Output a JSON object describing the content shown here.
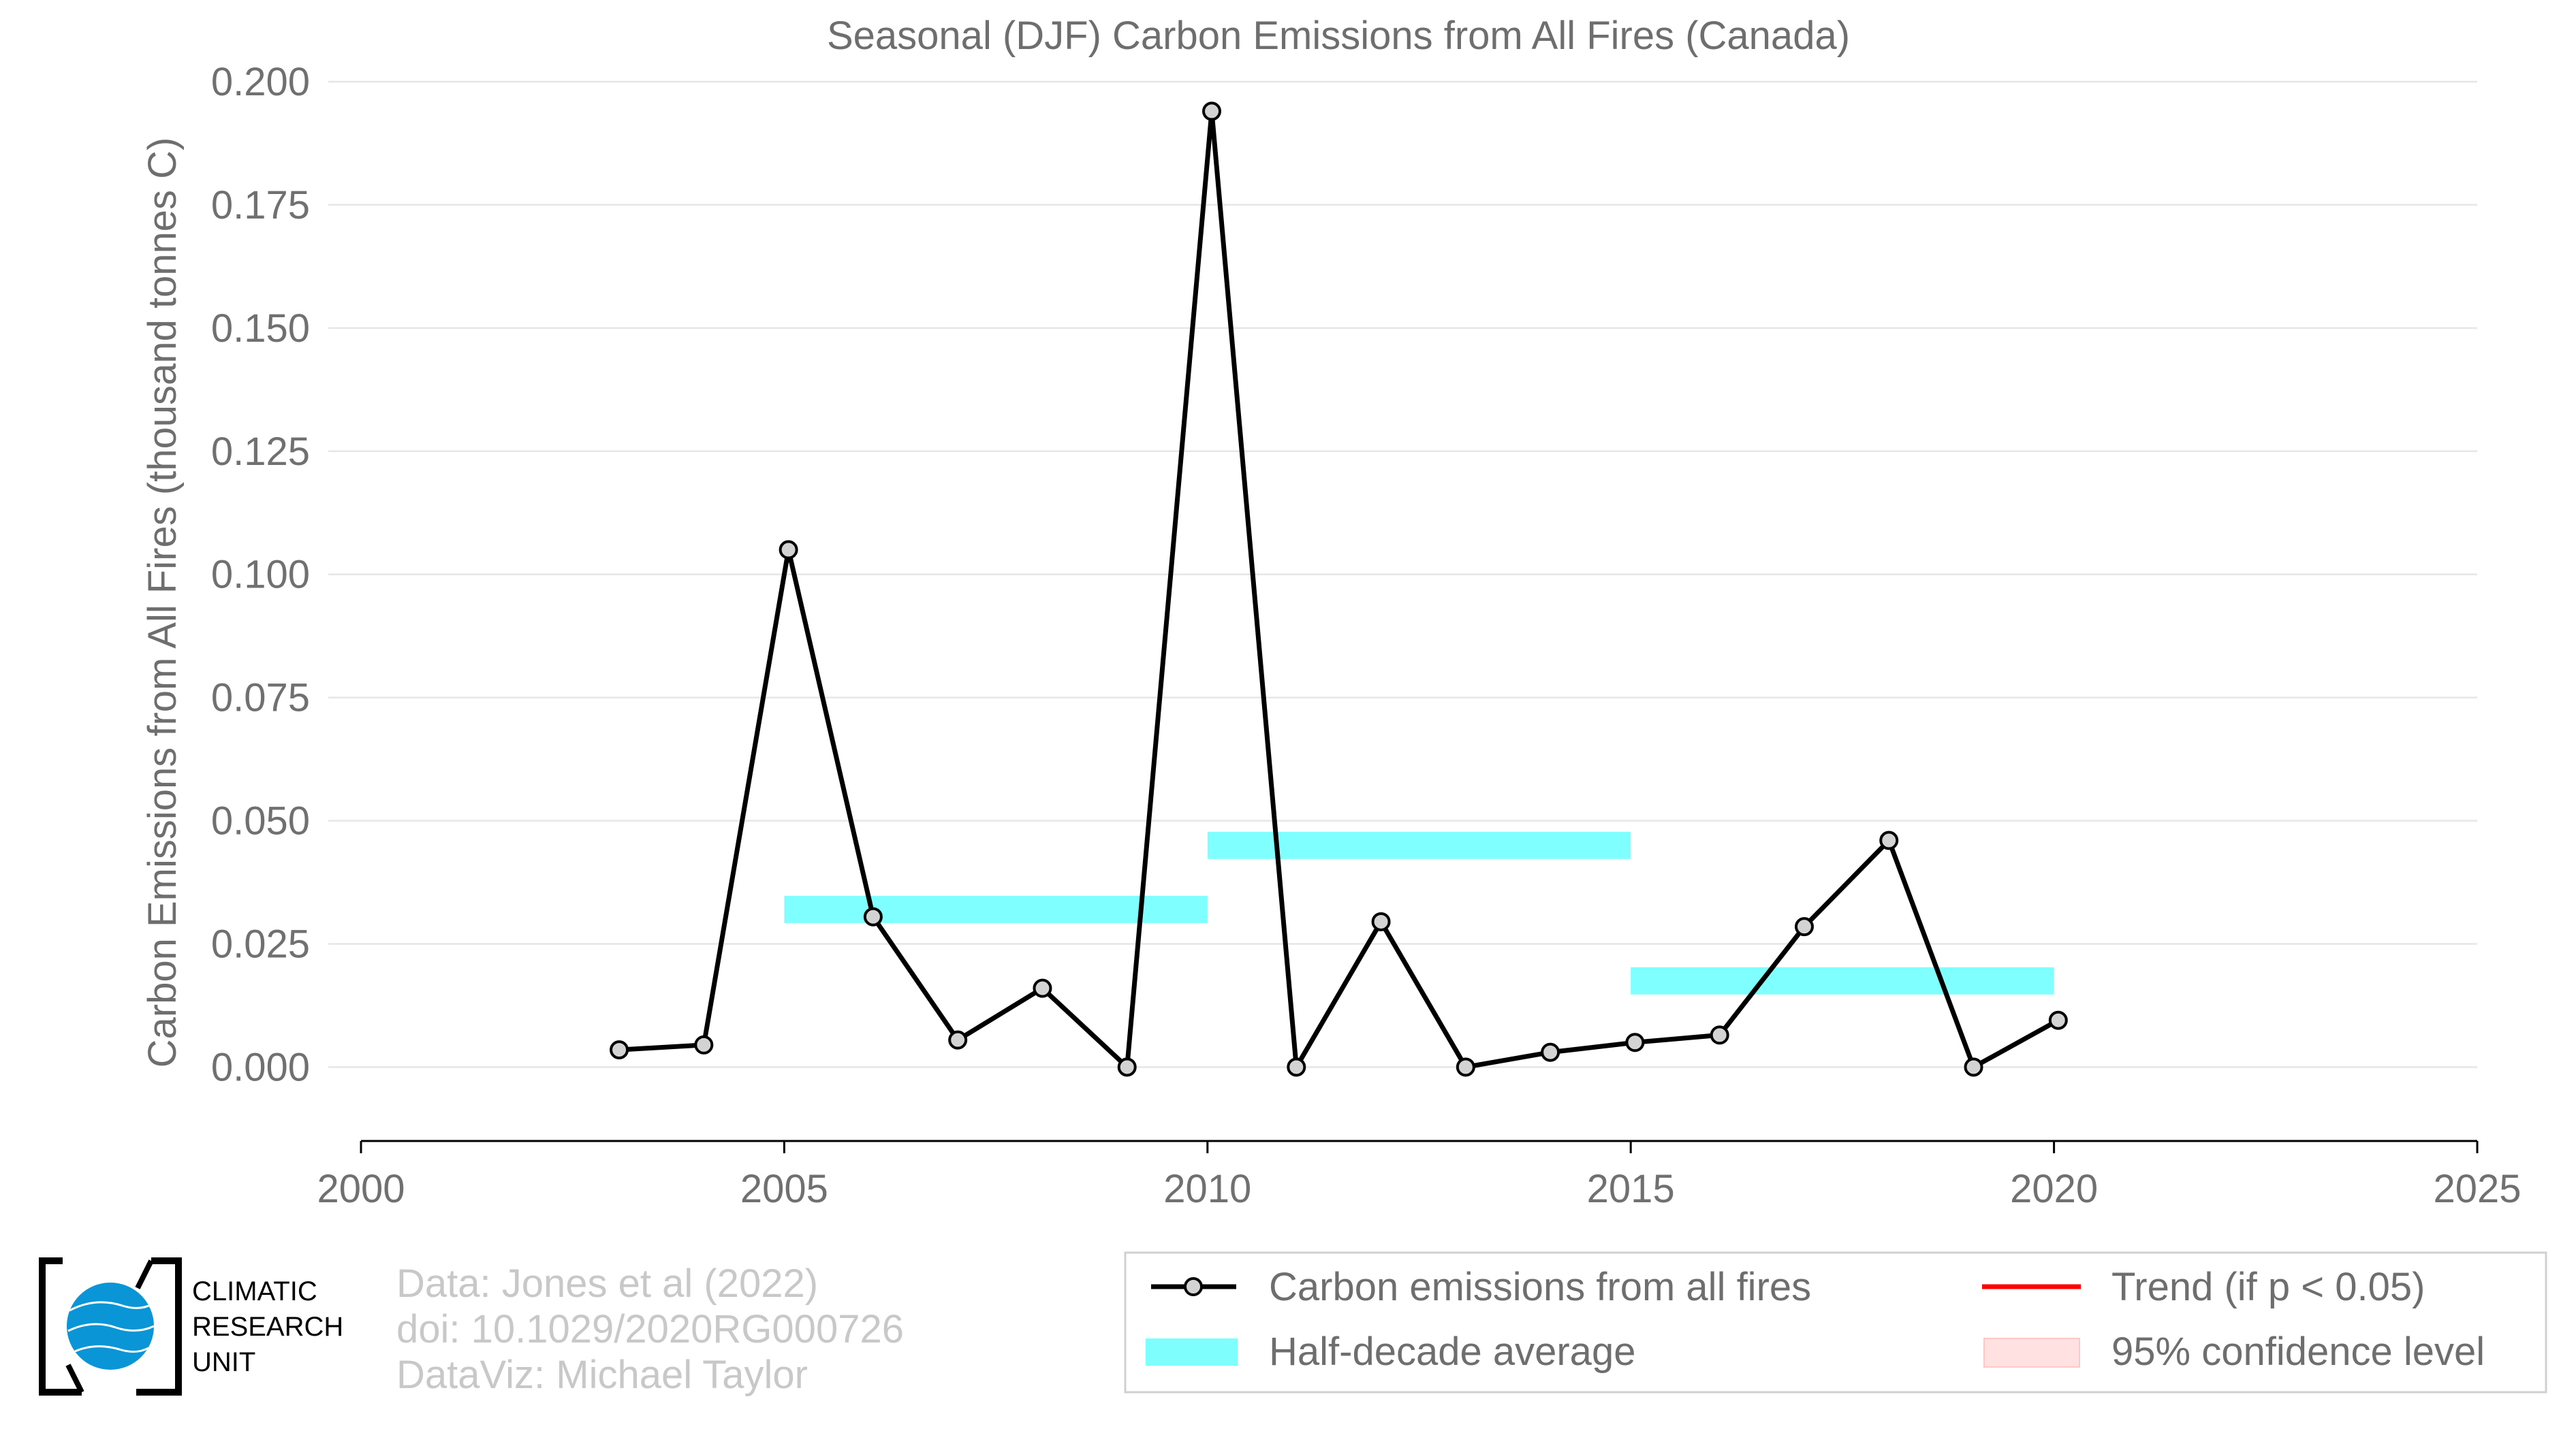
{
  "chart_data": {
    "type": "line",
    "title": "Seasonal (DJF) Carbon Emissions from All Fires (Canada)",
    "xlabel": "",
    "ylabel": "Carbon Emissions from All Fires (thousand tonnes C)",
    "xlim": [
      2000,
      2025
    ],
    "ylim": [
      -0.015,
      0.2
    ],
    "xticks": [
      "2000",
      "2005",
      "2010",
      "2015",
      "2020",
      "2025"
    ],
    "yticks": [
      "0.000",
      "0.025",
      "0.050",
      "0.075",
      "0.100",
      "0.125",
      "0.150",
      "0.175",
      "0.200"
    ],
    "grid": true,
    "series": [
      {
        "name": "Carbon emissions from all fires",
        "color": "#000000",
        "x": [
          2003,
          2004,
          2005,
          2006,
          2007,
          2008,
          2009,
          2010,
          2011,
          2012,
          2013,
          2014,
          2015,
          2016,
          2017,
          2018,
          2019,
          2020
        ],
        "values": [
          0.0035,
          0.0045,
          0.105,
          0.0305,
          0.0055,
          0.016,
          0.0,
          0.194,
          0.0,
          0.0295,
          0.0,
          0.003,
          0.005,
          0.0065,
          0.0285,
          0.046,
          0.0,
          0.0095
        ]
      }
    ],
    "half_decade_average": {
      "name": "Half-decade average",
      "color": "#00ffff",
      "segments": [
        {
          "x0": 2005,
          "x1": 2010,
          "value": 0.032
        },
        {
          "x0": 2010,
          "x1": 2015,
          "value": 0.045
        },
        {
          "x0": 2015,
          "x1": 2020,
          "value": 0.0175
        }
      ]
    },
    "legend": {
      "placement": "bottom-right",
      "entries": [
        {
          "label": "Carbon emissions from all fires",
          "kind": "line-marker",
          "color": "#000000"
        },
        {
          "label": "Trend (if p < 0.05)",
          "kind": "line",
          "color": "#ff0000"
        },
        {
          "label": "Half-decade average",
          "kind": "band",
          "color": "#00ffff"
        },
        {
          "label": "95% confidence level",
          "kind": "band",
          "color": "#ffb3b3"
        }
      ]
    }
  },
  "credits": {
    "line1": "Data: Jones et al (2022)",
    "line2": "doi: 10.1029/2020RG000726",
    "line3": "DataViz: Michael Taylor"
  },
  "logo": {
    "line1": "CLIMATIC",
    "line2": "RESEARCH",
    "line3": "UNIT"
  }
}
